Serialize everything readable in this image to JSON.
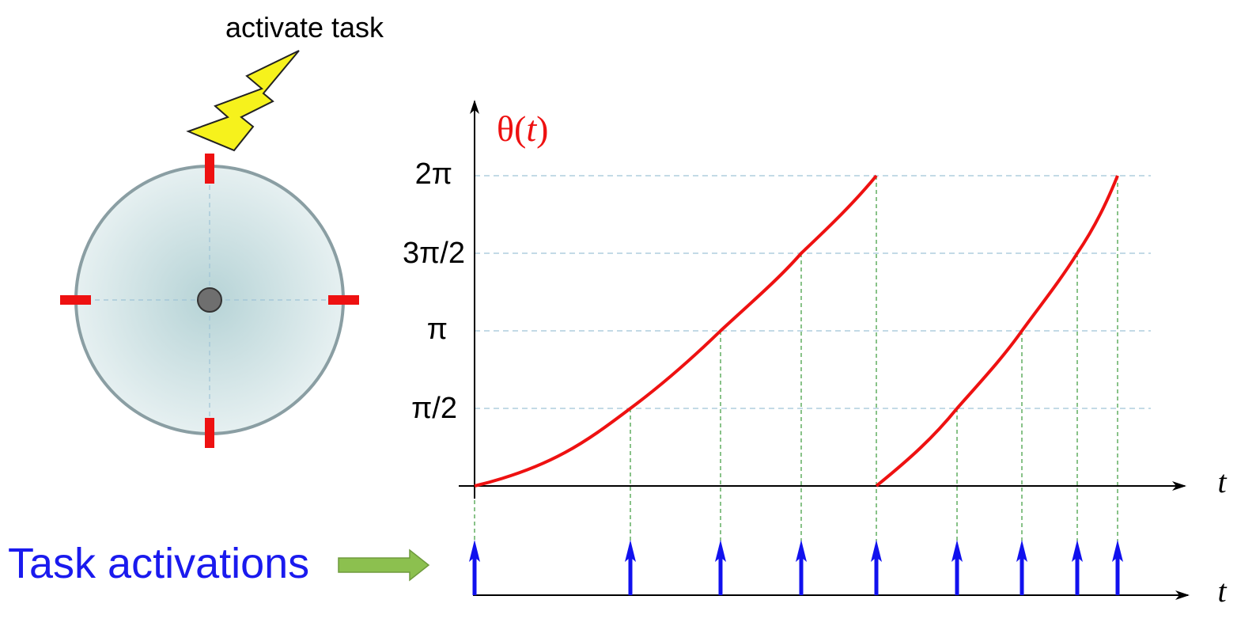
{
  "diagram": {
    "trigger_label": "activate task",
    "theta_label": {
      "prefix": "θ(",
      "var": "t",
      "suffix": ")"
    },
    "y_tick_labels": [
      "π/2",
      "π",
      "3π/2",
      "2π"
    ],
    "time_axis_label": "t",
    "activations_label": "Task activations",
    "colors": {
      "theta_curve": "#ee1111",
      "tick_marks": "#ee1111",
      "activation_arrows": "#1111ee",
      "activations_text": "#1a1aee",
      "guide_green": "#3a9a3a",
      "guide_blue": "#9fc3d6",
      "bolt_fill": "#f6f21c",
      "pointer_arrow": "#8cc04f",
      "disk_rim": "#8a9ea3"
    },
    "icons": [
      "lightning-bolt-icon",
      "right-arrow-icon",
      "up-arrow-icon"
    ]
  }
}
